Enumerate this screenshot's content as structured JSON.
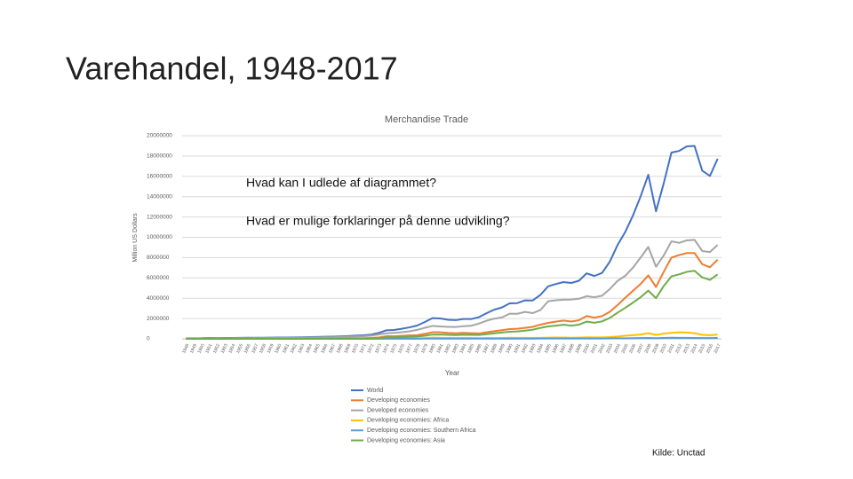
{
  "slide": {
    "title": "Varehandel, 1948-2017",
    "questions": [
      "Hvad kan I udlede af diagrammet?",
      "Hvad er mulige forklaringer på denne udvikling?"
    ],
    "source": "Kilde: Unctad"
  },
  "chart_data": {
    "type": "line",
    "title": "Merchandise Trade",
    "x_label": "Year",
    "y_label": "Million US Dollars",
    "categories": [
      "1948",
      "1949",
      "1950",
      "1951",
      "1952",
      "1953",
      "1954",
      "1955",
      "1956",
      "1957",
      "1958",
      "1959",
      "1960",
      "1961",
      "1962",
      "1963",
      "1964",
      "1965",
      "1966",
      "1967",
      "1968",
      "1969",
      "1970",
      "1971",
      "1972",
      "1973",
      "1974",
      "1975",
      "1976",
      "1977",
      "1978",
      "1979",
      "1980",
      "1981",
      "1982",
      "1983",
      "1984",
      "1985",
      "1986",
      "1987",
      "1988",
      "1989",
      "1990",
      "1991",
      "1992",
      "1993",
      "1994",
      "1995",
      "1996",
      "1997",
      "1998",
      "1999",
      "2000",
      "2001",
      "2002",
      "2003",
      "2004",
      "2005",
      "2006",
      "2007",
      "2008",
      "2009",
      "2010",
      "2011",
      "2012",
      "2013",
      "2014",
      "2015",
      "2016",
      "2017"
    ],
    "ylim": [
      0,
      20000000
    ],
    "yticks": [
      0,
      2000000,
      4000000,
      6000000,
      8000000,
      10000000,
      12000000,
      14000000,
      16000000,
      18000000,
      20000000
    ],
    "grid": true,
    "legend": "bottom",
    "series": [
      {
        "name": "World",
        "color": "#4472c4",
        "values": [
          59000,
          58500,
          62000,
          84000,
          81000,
          83000,
          86000,
          94000,
          104000,
          112000,
          108000,
          116000,
          130000,
          134000,
          142000,
          157000,
          174000,
          187000,
          205000,
          215000,
          240000,
          273000,
          317000,
          353000,
          418000,
          580000,
          840000,
          877000,
          991000,
          1130000,
          1310000,
          1660000,
          2040000,
          2010000,
          1880000,
          1840000,
          1950000,
          1950000,
          2130000,
          2520000,
          2870000,
          3090000,
          3490000,
          3520000,
          3790000,
          3780000,
          4330000,
          5170000,
          5400000,
          5590000,
          5500000,
          5720000,
          6450000,
          6190000,
          6490000,
          7590000,
          9220000,
          10510000,
          12130000,
          14020000,
          16150000,
          12560000,
          15300000,
          18340000,
          18500000,
          18950000,
          18990000,
          16560000,
          16040000,
          17730000
        ]
      },
      {
        "name": "Developing economies",
        "color": "#ed7d31",
        "values": [
          18000,
          17000,
          20000,
          27000,
          24000,
          23000,
          24000,
          26000,
          28000,
          29000,
          28000,
          29000,
          30000,
          30000,
          32000,
          35000,
          38000,
          41000,
          44000,
          46000,
          50000,
          55000,
          62000,
          70000,
          85000,
          130000,
          258000,
          255000,
          295000,
          337000,
          360000,
          490000,
          650000,
          650000,
          580000,
          550000,
          590000,
          560000,
          530000,
          640000,
          750000,
          850000,
          960000,
          990000,
          1080000,
          1180000,
          1400000,
          1570000,
          1690000,
          1800000,
          1700000,
          1830000,
          2250000,
          2090000,
          2240000,
          2660000,
          3320000,
          4040000,
          4730000,
          5400000,
          6250000,
          5100000,
          6600000,
          8000000,
          8250000,
          8450000,
          8450000,
          7350000,
          7050000,
          7800000
        ]
      },
      {
        "name": "Developed economies",
        "color": "#a5a5a5",
        "values": [
          39000,
          40000,
          40000,
          53000,
          54000,
          56000,
          59000,
          64000,
          71000,
          77000,
          75000,
          81000,
          92000,
          96000,
          101000,
          112000,
          126000,
          136000,
          150000,
          158000,
          178000,
          204000,
          238000,
          265000,
          312000,
          424000,
          547000,
          584000,
          652000,
          742000,
          880000,
          1090000,
          1270000,
          1220000,
          1180000,
          1170000,
          1250000,
          1290000,
          1500000,
          1780000,
          1990000,
          2110000,
          2480000,
          2470000,
          2650000,
          2530000,
          2840000,
          3700000,
          3800000,
          3850000,
          3870000,
          3950000,
          4200000,
          4100000,
          4250000,
          4900000,
          5700000,
          6200000,
          7000000,
          8000000,
          9050000,
          7100000,
          8200000,
          9600000,
          9450000,
          9700000,
          9750000,
          8650000,
          8550000,
          9250000
        ]
      },
      {
        "name": "Developing economies: Africa",
        "color": "#ffc000",
        "values": [
          4500,
          4500,
          5000,
          6500,
          6000,
          6000,
          6300,
          6600,
          7000,
          7200,
          7000,
          7400,
          7800,
          7900,
          8300,
          9000,
          10000,
          10500,
          11300,
          11500,
          12800,
          14500,
          16000,
          16500,
          19500,
          26000,
          46000,
          43000,
          50000,
          58000,
          58000,
          80000,
          120000,
          103000,
          88000,
          81000,
          85000,
          82000,
          66000,
          74000,
          76000,
          85000,
          106000,
          101000,
          100000,
          95000,
          102000,
          116000,
          129000,
          131000,
          113000,
          124000,
          150000,
          140000,
          145000,
          180000,
          232000,
          306000,
          364000,
          425000,
          560000,
          390000,
          510000,
          595000,
          640000,
          620000,
          560000,
          390000,
          360000,
          420000
        ]
      },
      {
        "name": "Developing economies: Southern Africa",
        "color": "#5b9bd5",
        "values": [
          1500,
          1300,
          1600,
          2000,
          1900,
          2000,
          2000,
          2200,
          2400,
          2500,
          2300,
          2400,
          2500,
          2600,
          2700,
          2900,
          3100,
          3300,
          3500,
          3700,
          4000,
          4300,
          4500,
          4800,
          5500,
          7500,
          10000,
          10500,
          10700,
          13000,
          15000,
          20000,
          27000,
          23000,
          19000,
          20000,
          19000,
          18000,
          20000,
          23000,
          24000,
          25000,
          27000,
          26000,
          26000,
          26000,
          28000,
          31000,
          32000,
          34000,
          32000,
          31000,
          33000,
          32000,
          33000,
          41000,
          53000,
          59000,
          67000,
          78000,
          88000,
          68000,
          92000,
          108000,
          99000,
          97000,
          93000,
          81000,
          76000,
          89000
        ]
      },
      {
        "name": "Developing economies: Asia",
        "color": "#70ad47",
        "values": [
          9000,
          8500,
          10000,
          13000,
          11500,
          11000,
          11500,
          12500,
          13000,
          13500,
          13000,
          13500,
          14000,
          14000,
          15000,
          16500,
          18000,
          19500,
          21000,
          22000,
          24000,
          27000,
          31000,
          36000,
          45000,
          72000,
          150000,
          150000,
          180000,
          210000,
          230000,
          310000,
          420000,
          430000,
          390000,
          370000,
          400000,
          390000,
          380000,
          460000,
          550000,
          620000,
          700000,
          730000,
          810000,
          900000,
          1080000,
          1220000,
          1300000,
          1390000,
          1300000,
          1400000,
          1700000,
          1580000,
          1720000,
          2060000,
          2570000,
          3050000,
          3560000,
          4100000,
          4750000,
          4000000,
          5200000,
          6150000,
          6350000,
          6600000,
          6700000,
          6050000,
          5800000,
          6350000
        ]
      }
    ]
  }
}
